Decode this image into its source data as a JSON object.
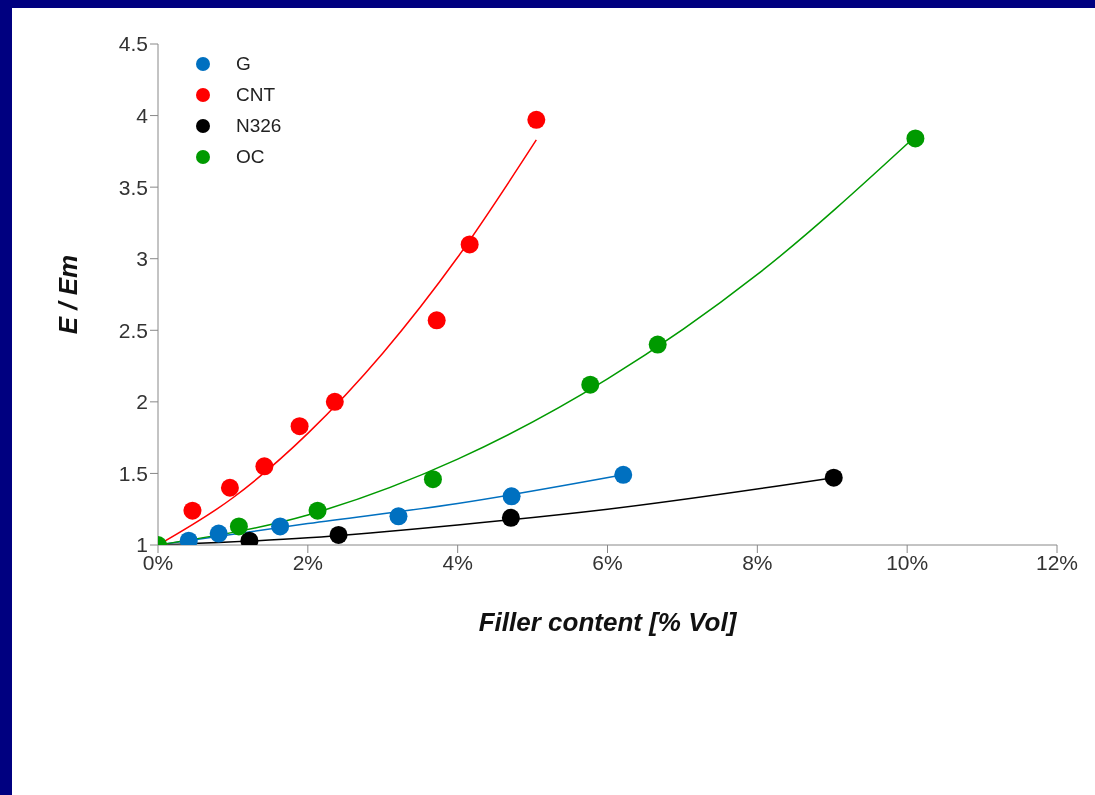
{
  "chart_data": {
    "type": "scatter",
    "xlabel": "Filler content [% Vol]",
    "ylabel": "E / Em",
    "xlim": [
      0,
      12
    ],
    "ylim": [
      1,
      4.5
    ],
    "xticks": [
      {
        "value": 0,
        "label": "0%"
      },
      {
        "value": 2,
        "label": "2%"
      },
      {
        "value": 4,
        "label": "4%"
      },
      {
        "value": 6,
        "label": "6%"
      },
      {
        "value": 8,
        "label": "8%"
      },
      {
        "value": 10,
        "label": "10%"
      },
      {
        "value": 12,
        "label": "12%"
      }
    ],
    "yticks": [
      1,
      1.5,
      2,
      2.5,
      3,
      3.5,
      4,
      4.5
    ],
    "legend": "top left",
    "marker": "circle",
    "series": [
      {
        "name": "G",
        "color": "#0070c0",
        "x": [
          0.41,
          0.81,
          1.63,
          3.21,
          4.72,
          6.21
        ],
        "values": [
          1.03,
          1.08,
          1.13,
          1.2,
          1.34,
          1.49
        ]
      },
      {
        "name": "CNT",
        "color": "#ff0000",
        "x": [
          0.46,
          0.96,
          1.42,
          1.89,
          2.36,
          3.72,
          4.16,
          5.05
        ],
        "values": [
          1.24,
          1.4,
          1.55,
          1.83,
          2.0,
          2.57,
          3.1,
          3.97
        ]
      },
      {
        "name": "N326",
        "color": "#000000",
        "x": [
          1.22,
          2.41,
          4.71,
          9.02
        ],
        "values": [
          1.03,
          1.07,
          1.19,
          1.47
        ]
      },
      {
        "name": "OC",
        "color": "#009a00",
        "x": [
          0,
          1.08,
          2.13,
          3.67,
          5.77,
          6.67,
          10.11
        ],
        "values": [
          1,
          1.13,
          1.24,
          1.46,
          2.12,
          2.4,
          3.84
        ]
      },
      {
        "type": "line",
        "marker": "none",
        "color": "#0070c0",
        "x": [
          0,
          2,
          4,
          6.21
        ],
        "values": [
          1,
          1.15,
          1.29,
          1.49
        ]
      },
      {
        "type": "line",
        "marker": "none",
        "color": "#ff0000",
        "x": [
          0,
          1,
          2,
          3,
          4,
          5.05
        ],
        "values": [
          1,
          1.33,
          1.78,
          2.34,
          3.01,
          3.83
        ]
      },
      {
        "type": "line",
        "marker": "none",
        "color": "#000000",
        "x": [
          0,
          2,
          4,
          6,
          9.02
        ],
        "values": [
          1,
          1.05,
          1.14,
          1.25,
          1.47
        ]
      },
      {
        "type": "line",
        "marker": "none",
        "color": "#009a00",
        "x": [
          0,
          2,
          4,
          6,
          8,
          10.1
        ],
        "values": [
          1,
          1.21,
          1.6,
          2.16,
          2.89,
          3.85
        ]
      }
    ]
  }
}
